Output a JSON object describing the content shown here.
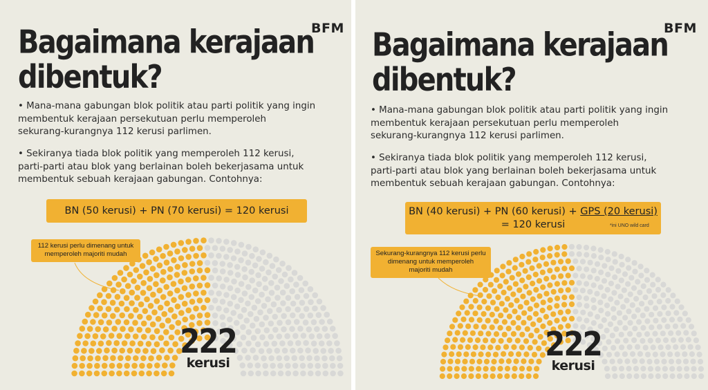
{
  "colors": {
    "background": "#ecebe2",
    "accent": "#f1b132",
    "empty_seat": "#d8d8d6",
    "text": "#222222"
  },
  "left": {
    "logo": "BFM",
    "title": [
      "Bagaimana kerajaan",
      "dibentuk?"
    ],
    "bullet1": [
      "• Mana-mana gabungan blok politik atau parti politik yang ingin",
      "membentuk kerajaan persekutuan perlu memperoleh",
      "sekurang-kurangnya 112 kerusi parlimen."
    ],
    "bullet2": [
      "• Sekiranya tiada blok politik yang memperoleh 112 kerusi,",
      "parti-parti atau blok yang berlainan boleh bekerjasama untuk",
      "membentuk sebuah kerajaan gabungan. Contohnya:"
    ],
    "equation": "BN (50 kerusi) + PN (70 kerusi) = 120 kerusi",
    "callout": [
      "112 kerusi perlu dimenang untuk",
      "memperoleh majoriti mudah"
    ],
    "total_seats": "222",
    "seats_label": "kerusi",
    "majority_seats": 112
  },
  "right": {
    "logo": "BFM",
    "title": [
      "Bagaimana kerajaan",
      "dibentuk?"
    ],
    "bullet1": [
      "• Mana-mana gabungan blok politik atau parti politik yang ingin",
      "membentuk kerajaan persekutuan perlu memperoleh",
      "sekurang-kurangnya 112 kerusi parlimen."
    ],
    "bullet2": [
      "• Sekiranya tiada blok politik yang memperoleh 112 kerusi,",
      "parti-parti atau blok yang berlainan boleh bekerjasama untuk",
      "membentuk sebuah kerajaan gabungan. Contohnya:"
    ],
    "equation_part1": "BN (40 kerusi) + PN (60 kerusi) + ",
    "equation_gps": "GPS (20 kerusi)",
    "equation_line2": "= 120 kerusi",
    "note": "*ini UNO wild card",
    "callout": [
      "Sekurang-kurangnya 112 kerusi perlu",
      "dimenang untuk memperoleh",
      "majoriti mudah"
    ],
    "total_seats": "222",
    "seats_label": "kerusi",
    "majority_seats": 112
  }
}
